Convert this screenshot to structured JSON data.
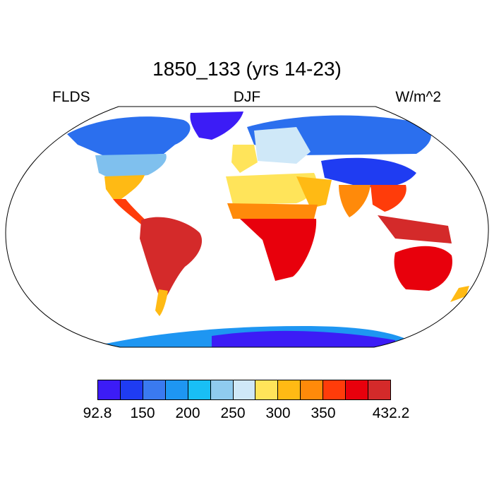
{
  "title": "1850_133 (yrs 14-23)",
  "subtitle": {
    "left": "FLDS",
    "center": "DJF",
    "right": "W/m^2"
  },
  "colorbar": {
    "colors": [
      "#3c1cf6",
      "#1f3cf2",
      "#3a7af0",
      "#1e96f2",
      "#19bff5",
      "#8fcbef",
      "#cfe8f8",
      "#ffe45a",
      "#ffba14",
      "#ff8a0a",
      "#ff3c0a",
      "#e8000c",
      "#d42a2a"
    ],
    "tick_labels": [
      "92.8",
      "150",
      "200",
      "250",
      "300",
      "350",
      "432.2"
    ]
  }
}
